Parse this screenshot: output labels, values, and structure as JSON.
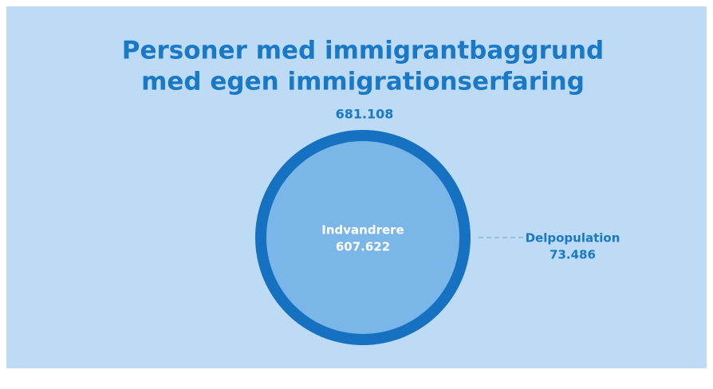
{
  "title": {
    "line1": "Personer med immigrantbaggrund",
    "line2": "med egen immigrationserfaring"
  },
  "total": {
    "value": "681.108"
  },
  "inner": {
    "label": "Indvandrere",
    "value": "607.622"
  },
  "subpopulation": {
    "label": "Delpopulation",
    "value": "73.486"
  }
}
